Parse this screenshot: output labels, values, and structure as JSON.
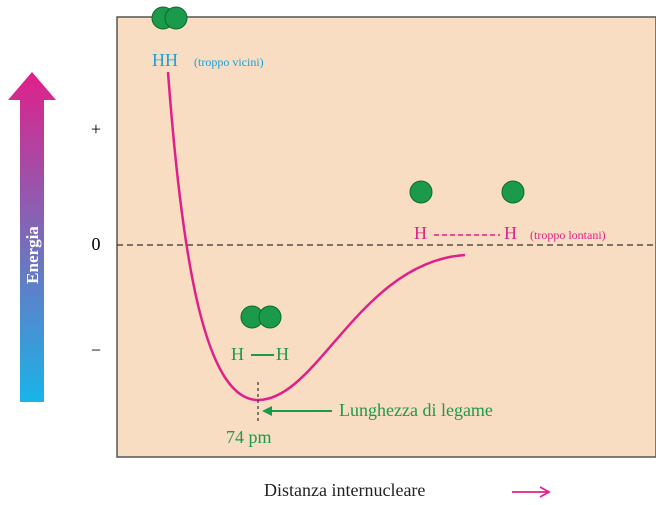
{
  "axis": {
    "label": "Energia",
    "plus": "+",
    "zero": "0",
    "minus": "−",
    "x_label": "Distanza internucleare"
  },
  "close": {
    "atoms": "HH",
    "note": "(troppo vicini)"
  },
  "far": {
    "left": "H",
    "right": "H",
    "note": "(troppo lontani)"
  },
  "bonded": {
    "left": "H",
    "right": "H"
  },
  "bond_length": {
    "label": "Lunghezza di legame",
    "value": "74 pm"
  }
}
